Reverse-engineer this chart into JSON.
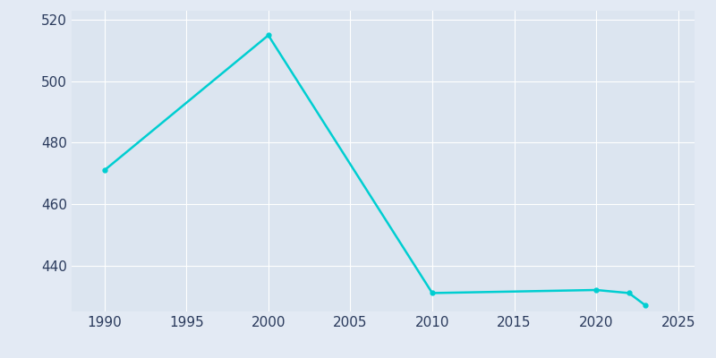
{
  "years": [
    1990,
    2000,
    2010,
    2020,
    2022,
    2023
  ],
  "population": [
    471,
    515,
    431,
    432,
    431,
    427
  ],
  "line_color": "#00CED1",
  "marker": "o",
  "marker_size": 3.5,
  "line_width": 1.8,
  "fig_bg_color": "#E3EAF4",
  "plot_bg_color": "#DCE5F0",
  "grid_color": "#ffffff",
  "tick_color": "#2a3a5c",
  "ylim": [
    425,
    523
  ],
  "yticks": [
    440,
    460,
    480,
    500,
    520
  ],
  "xlim": [
    1988,
    2026
  ],
  "xticks": [
    1990,
    1995,
    2000,
    2005,
    2010,
    2015,
    2020,
    2025
  ],
  "tick_labelsize": 11
}
